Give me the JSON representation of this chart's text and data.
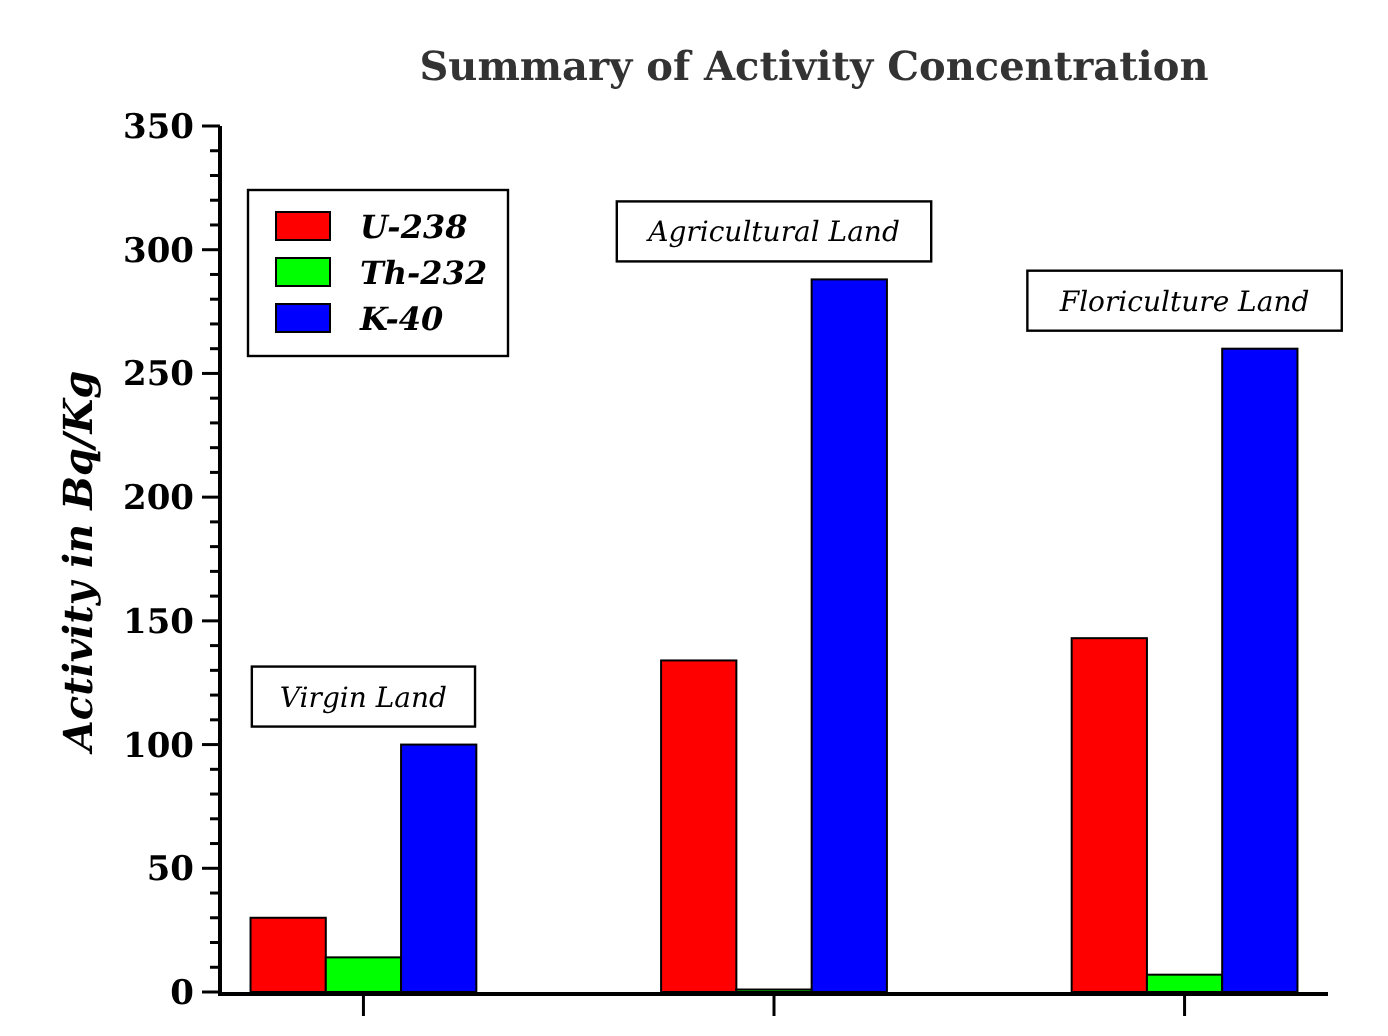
{
  "chart_data": {
    "type": "bar",
    "title": "Summary of Activity Concentration",
    "ylabel": "Activity in Bq/Kg",
    "categories": [
      "Virgin Land",
      "Agricultural Land",
      "Floriculture Land"
    ],
    "series": [
      {
        "name": "U-238",
        "color": "#ff0000",
        "values": [
          30,
          134,
          143
        ]
      },
      {
        "name": "Th-232",
        "color": "#00ff00",
        "values": [
          14,
          1,
          7
        ]
      },
      {
        "name": "K-40",
        "color": "#0000ff",
        "values": [
          100,
          288,
          260
        ]
      }
    ],
    "ylim": [
      0,
      350
    ],
    "yticks": [
      0,
      {
        "value": 10,
        "label": null
      },
      {
        "value": 20,
        "label": null
      },
      {
        "value": 30,
        "label": null
      },
      {
        "value": 40,
        "label": null
      },
      50,
      {
        "value": 60,
        "label": null
      },
      {
        "value": 70,
        "label": null
      },
      {
        "value": 80,
        "label": null
      },
      {
        "value": 90,
        "label": null
      },
      100,
      {
        "value": 110,
        "label": null
      },
      {
        "value": 120,
        "label": null
      },
      {
        "value": 130,
        "label": null
      },
      {
        "value": 140,
        "label": null
      },
      150,
      {
        "value": 160,
        "label": null
      },
      {
        "value": 170,
        "label": null
      },
      {
        "value": 180,
        "label": null
      },
      {
        "value": 190,
        "label": null
      },
      200,
      {
        "value": 210,
        "label": null
      },
      {
        "value": 220,
        "label": null
      },
      {
        "value": 230,
        "label": null
      },
      {
        "value": 240,
        "label": null
      },
      250,
      {
        "value": 260,
        "label": null
      },
      {
        "value": 270,
        "label": null
      },
      {
        "value": 280,
        "label": null
      },
      {
        "value": 290,
        "label": null
      },
      300,
      {
        "value": 310,
        "label": null
      },
      {
        "value": 320,
        "label": null
      },
      {
        "value": 330,
        "label": null
      },
      {
        "value": 340,
        "label": null
      },
      350
    ],
    "tick_labels": "y",
    "legend": "top left",
    "grid": false
  }
}
